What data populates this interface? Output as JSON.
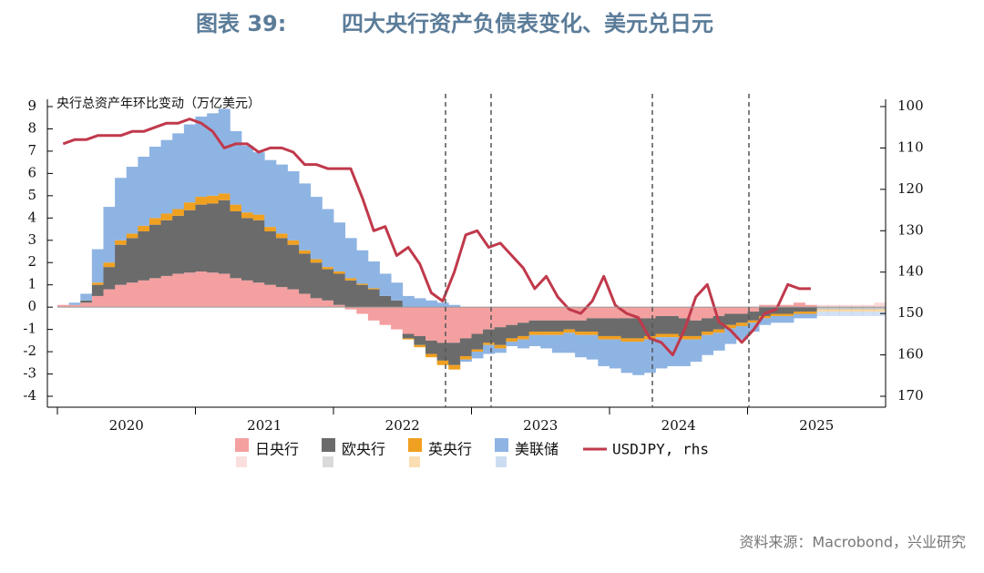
{
  "chart_data": {
    "type": "stacked-bar-line",
    "title_label": "图表 39:",
    "title": "四大央行资产负债表变化、美元兑日元",
    "y_label": "央行总资产年环比变动（万亿美元）",
    "source": "资料来源：Macrobond，兴业研究",
    "categories": [
      null,
      null,
      null,
      null,
      null,
      null,
      "2020",
      null,
      null,
      null,
      null,
      null,
      null,
      null,
      null,
      null,
      null,
      null,
      "2021",
      null,
      null,
      null,
      null,
      null,
      null,
      null,
      null,
      null,
      null,
      null,
      "2022",
      null,
      null,
      null,
      null,
      null,
      null,
      null,
      null,
      null,
      null,
      null,
      "2023",
      null,
      null,
      null,
      null,
      null,
      null,
      null,
      null,
      null,
      null,
      null,
      "2024",
      null,
      null,
      null,
      null,
      null,
      null,
      null,
      null,
      null,
      null,
      null,
      "2025",
      null,
      null,
      null,
      null,
      null
    ],
    "ylim": [
      -4,
      9
    ],
    "yticks": [
      -4,
      -3,
      -2,
      -1,
      0,
      1,
      2,
      3,
      4,
      5,
      6,
      7,
      8,
      9
    ],
    "y2lim": [
      170,
      100
    ],
    "y2ticks": [
      170,
      160,
      150,
      140,
      130,
      120,
      110,
      100
    ],
    "series": [
      {
        "name": "日央行",
        "color": "#f4a0a0",
        "values": [
          0.1,
          0.1,
          0.2,
          0.5,
          0.8,
          1.0,
          1.1,
          1.2,
          1.3,
          1.4,
          1.5,
          1.55,
          1.6,
          1.55,
          1.5,
          1.3,
          1.2,
          1.1,
          1.0,
          0.9,
          0.8,
          0.6,
          0.4,
          0.3,
          0.1,
          -0.1,
          -0.3,
          -0.6,
          -0.8,
          -1.0,
          -1.2,
          -1.3,
          -1.5,
          -1.6,
          -1.6,
          -1.4,
          -1.2,
          -1.0,
          -0.9,
          -0.8,
          -0.7,
          -0.6,
          -0.6,
          -0.6,
          -0.6,
          -0.6,
          -0.5,
          -0.5,
          -0.5,
          -0.5,
          -0.5,
          -0.5,
          -0.4,
          -0.4,
          -0.5,
          -0.6,
          -0.5,
          -0.4,
          -0.3,
          -0.3,
          -0.2,
          0.1,
          0.1,
          0.1,
          0.2,
          0.1,
          0.1,
          0.1,
          0.1,
          0.1,
          0.1,
          0.2
        ]
      },
      {
        "name": "欧央行",
        "color": "#6b6b6b",
        "values": [
          0,
          0,
          0.1,
          0.5,
          1.0,
          1.8,
          2.0,
          2.2,
          2.4,
          2.5,
          2.6,
          2.8,
          3.0,
          3.1,
          3.3,
          3.0,
          2.8,
          2.8,
          2.4,
          2.2,
          2.0,
          1.8,
          1.6,
          1.4,
          1.4,
          1.2,
          1.0,
          0.8,
          0.5,
          0.3,
          -0.2,
          -0.4,
          -0.6,
          -0.8,
          -1.0,
          -0.8,
          -0.7,
          -0.6,
          -0.8,
          -0.6,
          -0.6,
          -0.5,
          -0.5,
          -0.5,
          -0.4,
          -0.5,
          -0.6,
          -0.8,
          -0.8,
          -0.9,
          -0.9,
          -0.8,
          -0.8,
          -0.8,
          -0.8,
          -0.7,
          -0.6,
          -0.6,
          -0.5,
          -0.4,
          -0.4,
          -0.4,
          -0.3,
          -0.3,
          -0.2,
          -0.2,
          -0.1,
          -0.1,
          -0.1,
          -0.1,
          -0.1,
          -0.1
        ]
      },
      {
        "name": "英央行",
        "color": "#f0a020",
        "values": [
          0,
          0,
          0,
          0.1,
          0.2,
          0.2,
          0.2,
          0.25,
          0.3,
          0.3,
          0.3,
          0.35,
          0.35,
          0.35,
          0.3,
          0.3,
          0.25,
          0.25,
          0.2,
          0.2,
          0.2,
          0.15,
          0.15,
          0.1,
          0.1,
          0.1,
          0.05,
          0.05,
          0,
          0,
          -0.05,
          -0.1,
          -0.15,
          -0.2,
          -0.2,
          -0.15,
          -0.1,
          -0.1,
          -0.15,
          -0.15,
          -0.15,
          -0.15,
          -0.15,
          -0.15,
          -0.15,
          -0.15,
          -0.15,
          -0.15,
          -0.15,
          -0.15,
          -0.15,
          -0.15,
          -0.15,
          -0.15,
          -0.15,
          -0.15,
          -0.15,
          -0.15,
          -0.15,
          -0.15,
          -0.1,
          -0.1,
          -0.1,
          -0.1,
          -0.1,
          -0.1,
          -0.1,
          -0.1,
          -0.1,
          -0.1,
          -0.1,
          -0.1
        ]
      },
      {
        "name": "美联储",
        "color": "#8eb4e3",
        "values": [
          0,
          0.1,
          0.3,
          1.5,
          2.5,
          2.8,
          3.0,
          3.1,
          3.2,
          3.3,
          3.4,
          3.5,
          3.6,
          3.7,
          3.8,
          3.3,
          3.0,
          2.8,
          3.0,
          3.1,
          3.1,
          3.0,
          2.8,
          2.6,
          2.2,
          1.8,
          1.5,
          1.2,
          1.0,
          0.8,
          0.5,
          0.4,
          0.3,
          0.2,
          0.1,
          -0.1,
          -0.3,
          -0.4,
          -0.2,
          -0.2,
          -0.4,
          -0.5,
          -0.6,
          -0.8,
          -0.9,
          -1.0,
          -1.1,
          -1.2,
          -1.3,
          -1.4,
          -1.5,
          -1.5,
          -1.4,
          -1.3,
          -1.2,
          -1.0,
          -0.9,
          -0.8,
          -0.7,
          -0.6,
          -0.4,
          -0.3,
          -0.3,
          -0.3,
          -0.2,
          -0.2,
          -0.2,
          -0.2,
          -0.2,
          -0.2,
          -0.2,
          -0.2
        ]
      },
      {
        "name": "USDJPY, rhs",
        "color": "#c0394b",
        "axis": "y2",
        "values": [
          109,
          108,
          108,
          107,
          107,
          107,
          106,
          106,
          105,
          104,
          104,
          103,
          104,
          106,
          110,
          109,
          109,
          111,
          110,
          110,
          111,
          114,
          114,
          115,
          115,
          115,
          122,
          130,
          129,
          136,
          134,
          138,
          145,
          147,
          140,
          131,
          130,
          134,
          133,
          136,
          139,
          144,
          141,
          146,
          149,
          150,
          147,
          141,
          148,
          150,
          151,
          156,
          157,
          160,
          154,
          146,
          143,
          152,
          154,
          157,
          154,
          150,
          149,
          143,
          144,
          144,
          null,
          null,
          null,
          null,
          null,
          null
        ]
      }
    ]
  }
}
